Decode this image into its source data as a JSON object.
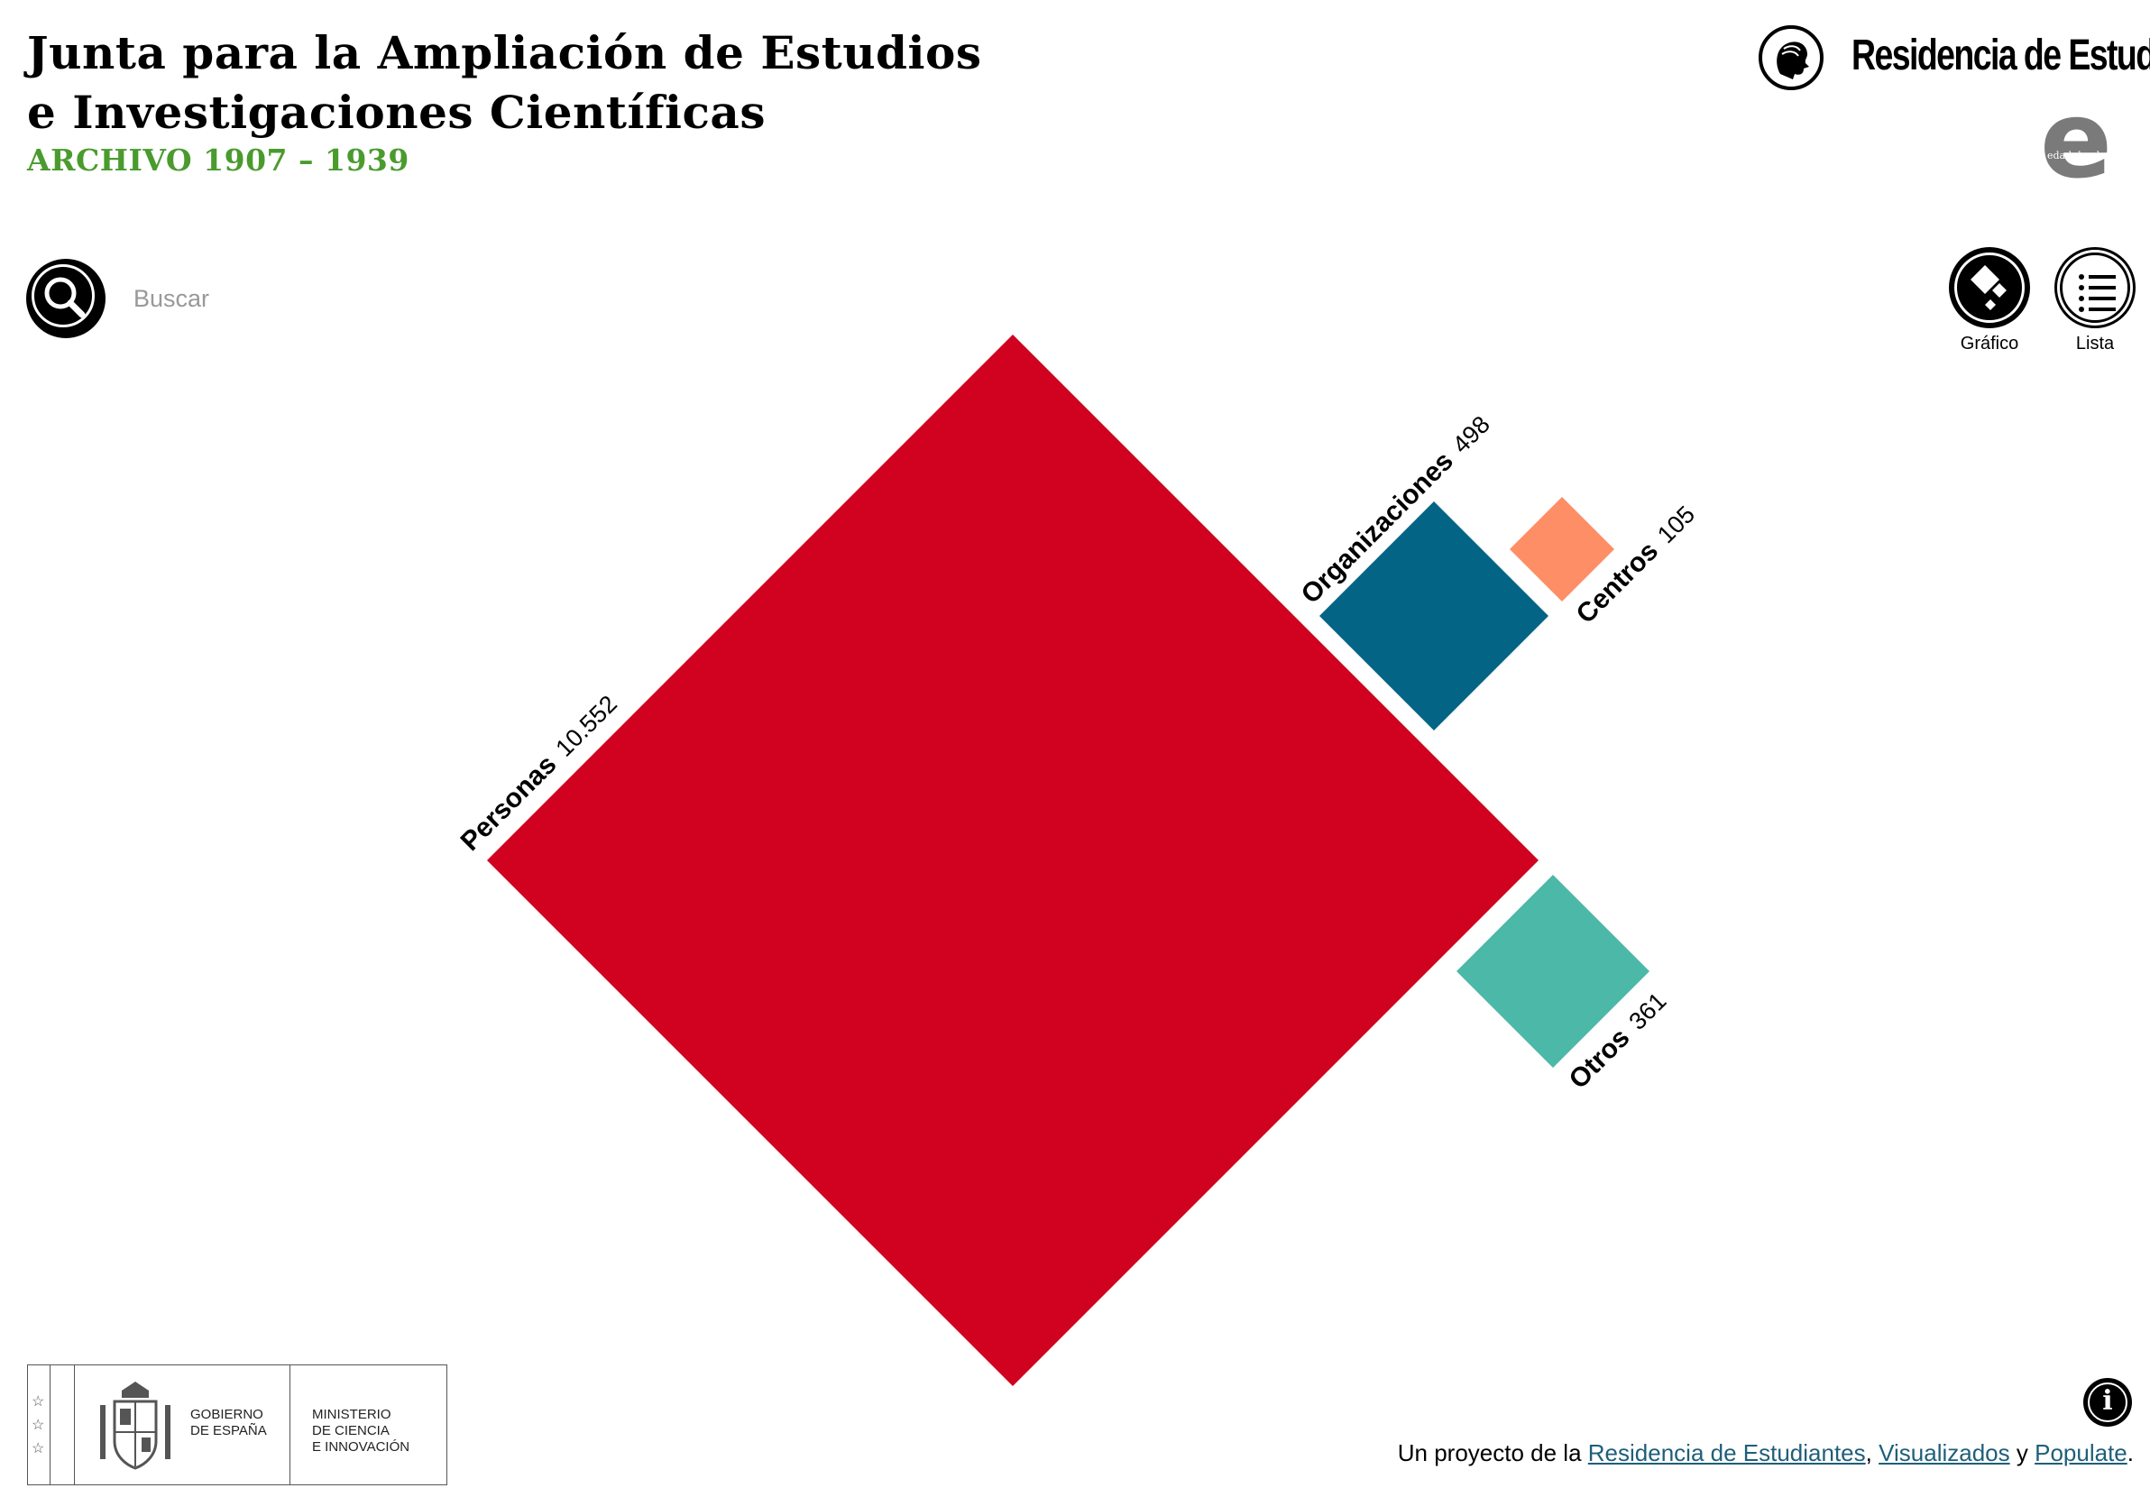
{
  "header": {
    "title_line1": "Junta para la Ampliación de Estudios",
    "title_line2": "e Investigaciones Científicas",
    "subtitle": "ARCHIVO 1907 – 1939"
  },
  "search": {
    "placeholder": "Buscar",
    "icon": "magnifier-icon"
  },
  "logos": {
    "residencia_name": "Residencia de Estudiantes",
    "edad_letter": "e",
    "edad_tag": "edad de plata"
  },
  "view_toggle": [
    {
      "label": "Gráfico",
      "icon": "diamond-chart-icon",
      "active": true
    },
    {
      "label": "Lista",
      "icon": "list-icon",
      "active": false
    }
  ],
  "categories": [
    {
      "name": "Personas",
      "count": "10.552",
      "value": 10552,
      "color": "#d0021f"
    },
    {
      "name": "Organizaciones",
      "count": "498",
      "value": 498,
      "color": "#036485"
    },
    {
      "name": "Centros",
      "count": "105",
      "value": 105,
      "color": "#fe8e66"
    },
    {
      "name": "Otros",
      "count": "361",
      "value": 361,
      "color": "#4cb8a8"
    }
  ],
  "footer": {
    "gov_line": "GOBIERNO\nDE ESPAÑA",
    "ministry_line": "MINISTERIO\nDE CIENCIA\nE INNOVACIÓN",
    "credit_prefix": "Un proyecto de la",
    "credit_link1": "Residencia de Estudiantes",
    "credit_comma": ",",
    "credit_link2": "Visualizados",
    "credit_and": "y",
    "credit_link3": "Populate",
    "credit_dot": "."
  },
  "colors": {
    "accent_green": "#4a9b2e",
    "link": "#1f5f7a"
  }
}
